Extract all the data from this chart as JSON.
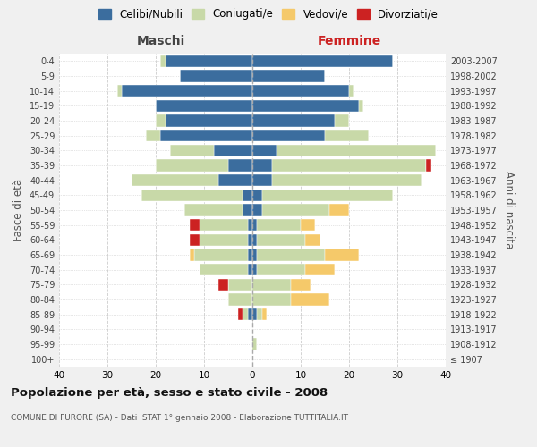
{
  "age_groups": [
    "100+",
    "95-99",
    "90-94",
    "85-89",
    "80-84",
    "75-79",
    "70-74",
    "65-69",
    "60-64",
    "55-59",
    "50-54",
    "45-49",
    "40-44",
    "35-39",
    "30-34",
    "25-29",
    "20-24",
    "15-19",
    "10-14",
    "5-9",
    "0-4"
  ],
  "birth_years": [
    "≤ 1907",
    "1908-1912",
    "1913-1917",
    "1918-1922",
    "1923-1927",
    "1928-1932",
    "1933-1937",
    "1938-1942",
    "1943-1947",
    "1948-1952",
    "1953-1957",
    "1958-1962",
    "1963-1967",
    "1968-1972",
    "1973-1977",
    "1978-1982",
    "1983-1987",
    "1988-1992",
    "1993-1997",
    "1998-2002",
    "2003-2007"
  ],
  "colors": {
    "celibi": "#3b6d9e",
    "coniugati": "#c8d9a8",
    "vedovi": "#f5c96a",
    "divorziati": "#cc2222"
  },
  "maschi": {
    "celibi": [
      0,
      0,
      0,
      1,
      0,
      0,
      1,
      1,
      1,
      1,
      2,
      2,
      7,
      5,
      8,
      19,
      18,
      20,
      27,
      15,
      18
    ],
    "coniugati": [
      0,
      0,
      0,
      1,
      5,
      5,
      10,
      11,
      10,
      10,
      12,
      21,
      18,
      15,
      9,
      3,
      2,
      0,
      1,
      0,
      1
    ],
    "vedovi": [
      0,
      0,
      0,
      0,
      0,
      0,
      0,
      1,
      0,
      0,
      0,
      0,
      0,
      0,
      0,
      0,
      0,
      0,
      0,
      0,
      0
    ],
    "divorziati": [
      0,
      0,
      0,
      1,
      0,
      2,
      0,
      0,
      2,
      2,
      0,
      0,
      0,
      0,
      0,
      0,
      0,
      0,
      0,
      0,
      0
    ]
  },
  "femmine": {
    "celibi": [
      0,
      0,
      0,
      1,
      0,
      0,
      1,
      1,
      1,
      1,
      2,
      2,
      4,
      4,
      5,
      15,
      17,
      22,
      20,
      15,
      29
    ],
    "coniugati": [
      0,
      1,
      0,
      1,
      8,
      8,
      10,
      14,
      10,
      9,
      14,
      27,
      31,
      32,
      33,
      9,
      3,
      1,
      1,
      0,
      0
    ],
    "vedovi": [
      0,
      0,
      0,
      1,
      8,
      4,
      6,
      7,
      3,
      3,
      4,
      0,
      0,
      0,
      0,
      0,
      0,
      0,
      0,
      0,
      0
    ],
    "divorziati": [
      0,
      0,
      0,
      0,
      0,
      0,
      0,
      0,
      0,
      0,
      0,
      0,
      0,
      1,
      0,
      0,
      0,
      0,
      0,
      0,
      0
    ]
  },
  "title": "Popolazione per età, sesso e stato civile - 2008",
  "subtitle": "COMUNE DI FURORE (SA) - Dati ISTAT 1° gennaio 2008 - Elaborazione TUTTITALIA.IT",
  "xlabel_left": "Maschi",
  "xlabel_right": "Femmine",
  "ylabel_left": "Fasce di età",
  "ylabel_right": "Anni di nascita",
  "xlim": 40,
  "legend_labels": [
    "Celibi/Nubili",
    "Coniugati/e",
    "Vedovi/e",
    "Divorziati/e"
  ],
  "bg_color": "#f0f0f0",
  "plot_bg": "#ffffff"
}
